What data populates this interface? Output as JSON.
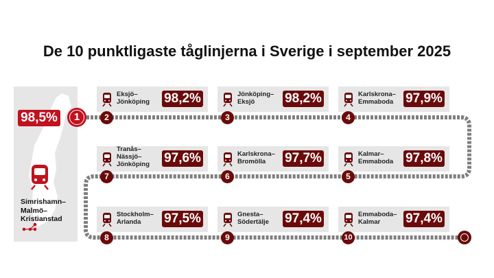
{
  "title": "De 10 punktligaste tåglinjerna i Sverige i september 2025",
  "top": {
    "rank": "1",
    "percent": "98,5%",
    "route": [
      "Simrishamn–",
      "Malmö–",
      "Kristianstad"
    ]
  },
  "colors": {
    "accent": "#c0121f",
    "dark": "#6b0a0a",
    "card": "#e6e6e6",
    "track": "#7f7f7f"
  },
  "routes": [
    {
      "rank": "2",
      "name": [
        "Eksjö–",
        "Jönköping"
      ],
      "percent": "98,2%"
    },
    {
      "rank": "3",
      "name": [
        "Jönköping–",
        "Eksjö"
      ],
      "percent": "98,2%"
    },
    {
      "rank": "4",
      "name": [
        "Karlskrona–",
        "Emmaboda"
      ],
      "percent": "97,9%"
    },
    {
      "rank": "5",
      "name": [
        "Kalmar–",
        "Emmaboda"
      ],
      "percent": "97,8%"
    },
    {
      "rank": "6",
      "name": [
        "Karlskrona–",
        "Bromölla"
      ],
      "percent": "97,7%"
    },
    {
      "rank": "7",
      "name": [
        "Tranås–",
        "Nässjö–",
        "Jönköping"
      ],
      "percent": "97,6%"
    },
    {
      "rank": "8",
      "name": [
        "Stockholm–",
        "Arlanda"
      ],
      "percent": "97,5%"
    },
    {
      "rank": "9",
      "name": [
        "Gnesta–",
        "Södertälje"
      ],
      "percent": "97,4%"
    },
    {
      "rank": "10",
      "name": [
        "Emmaboda–",
        "Kalmar"
      ],
      "percent": "97,4%"
    }
  ]
}
